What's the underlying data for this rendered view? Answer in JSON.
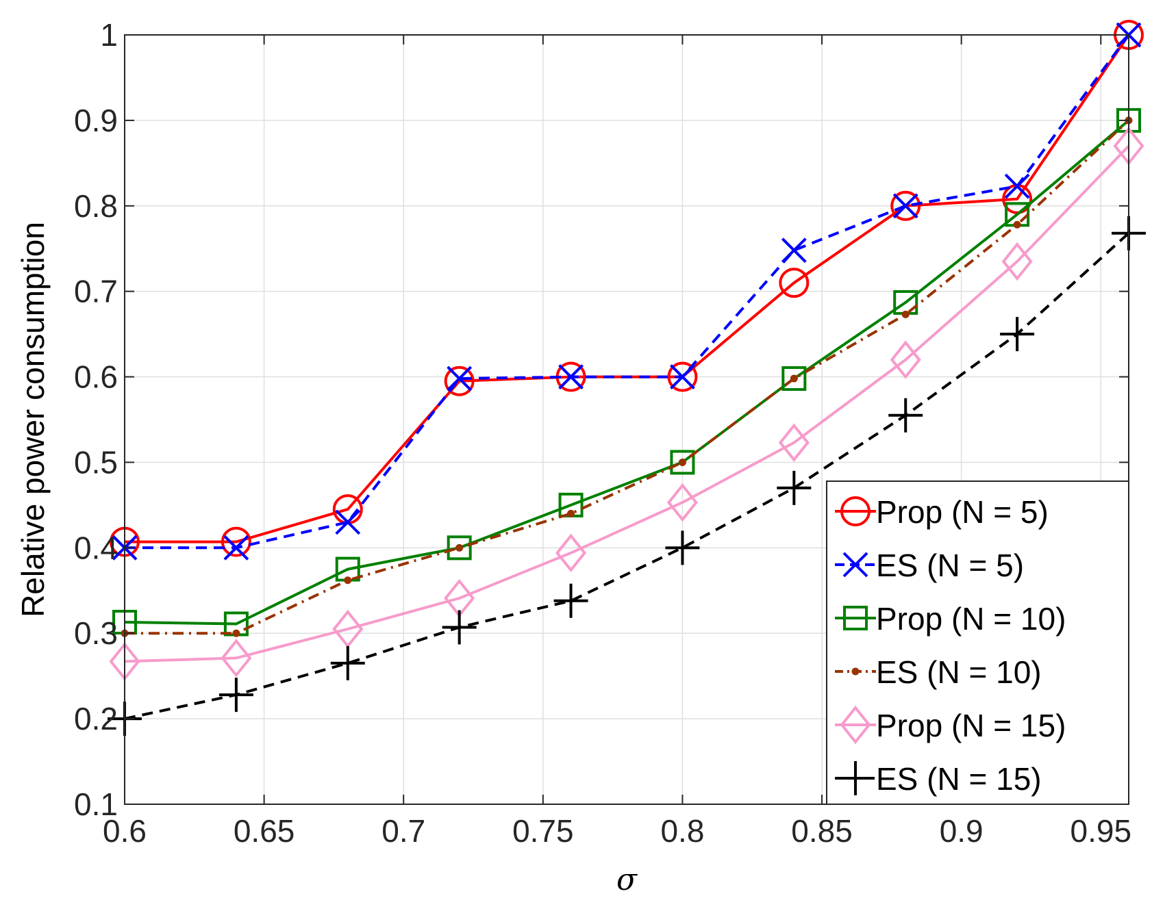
{
  "chart_data": {
    "type": "line",
    "title": "",
    "xlabel": "σ",
    "ylabel": "Relative power consumption",
    "xlim": [
      0.6,
      0.96
    ],
    "ylim": [
      0.1,
      1.0
    ],
    "xticks": [
      0.6,
      0.65,
      0.7,
      0.75,
      0.8,
      0.85,
      0.9,
      0.95
    ],
    "xtick_labels": [
      "0.6",
      "0.65",
      "0.7",
      "0.75",
      "0.8",
      "0.85",
      "0.9",
      "0.95"
    ],
    "yticks": [
      0.1,
      0.2,
      0.3,
      0.4,
      0.5,
      0.6,
      0.7,
      0.8,
      0.9,
      1.0
    ],
    "ytick_labels": [
      "0.1",
      "0.2",
      "0.3",
      "0.4",
      "0.5",
      "0.6",
      "0.7",
      "0.8",
      "0.9",
      "1"
    ],
    "grid": true,
    "legend_position": "bottom-right",
    "x": [
      0.6,
      0.64,
      0.68,
      0.72,
      0.76,
      0.8,
      0.84,
      0.88,
      0.92,
      0.96
    ],
    "series": [
      {
        "name": "Prop (N = 5)",
        "color": "#ff0000",
        "line_style": "solid",
        "marker": "circle",
        "values": [
          0.407,
          0.407,
          0.445,
          0.595,
          0.6,
          0.6,
          0.71,
          0.8,
          0.808,
          1.0
        ]
      },
      {
        "name": "ES (N = 5)",
        "color": "#0000ff",
        "line_style": "dashed",
        "marker": "x",
        "values": [
          0.4,
          0.4,
          0.43,
          0.598,
          0.6,
          0.6,
          0.748,
          0.8,
          0.823,
          1.0
        ]
      },
      {
        "name": "Prop (N = 10)",
        "color": "#008000",
        "line_style": "solid",
        "marker": "square",
        "values": [
          0.313,
          0.311,
          0.375,
          0.4,
          0.45,
          0.5,
          0.598,
          0.687,
          0.79,
          0.9
        ]
      },
      {
        "name": "ES (N = 10)",
        "color": "#993300",
        "line_style": "dash-dot",
        "marker": "point",
        "values": [
          0.3,
          0.3,
          0.362,
          0.4,
          0.44,
          0.5,
          0.598,
          0.673,
          0.778,
          0.9
        ]
      },
      {
        "name": "Prop (N = 15)",
        "color": "#f79bcb",
        "line_style": "solid",
        "marker": "diamond",
        "values": [
          0.267,
          0.271,
          0.305,
          0.341,
          0.394,
          0.453,
          0.523,
          0.62,
          0.735,
          0.87
        ]
      },
      {
        "name": "ES (N = 15)",
        "color": "#000000",
        "line_style": "dashed",
        "marker": "plus",
        "values": [
          0.2,
          0.228,
          0.265,
          0.307,
          0.338,
          0.4,
          0.47,
          0.555,
          0.65,
          0.768
        ]
      }
    ]
  }
}
